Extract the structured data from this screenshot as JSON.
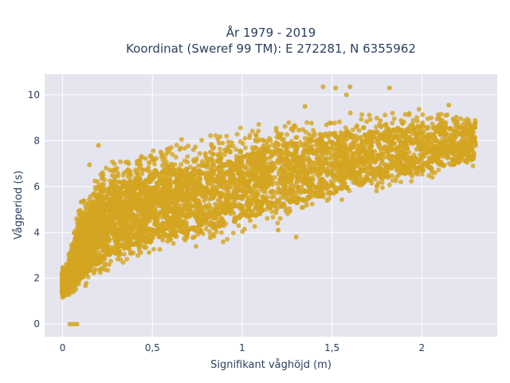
{
  "chart_data": {
    "type": "scatter",
    "title_line1": "År 1979 - 2019",
    "title_line2": "Koordinat (Sweref 99 TM): E 272281, N 6355962",
    "xlabel": "Signifikant våghöjd (m)",
    "ylabel": "Vågperiod (s)",
    "xlim": [
      -0.1,
      2.42
    ],
    "ylim": [
      -0.55,
      10.9
    ],
    "xticks": [
      0,
      0.5,
      1,
      1.5,
      2
    ],
    "xtick_labels": [
      "0",
      "0,5",
      "1",
      "1,5",
      "2"
    ],
    "yticks": [
      0,
      2,
      4,
      6,
      8,
      10
    ],
    "ytick_labels": [
      "0",
      "2",
      "4",
      "6",
      "8",
      "10"
    ],
    "grid": true,
    "plot_background": "#e5e5ef",
    "marker_color": "#d4a520",
    "point_cloud": {
      "x_range": [
        0.0,
        2.3
      ],
      "lower_envelope": [
        [
          0.02,
          1.1
        ],
        [
          0.1,
          1.4
        ],
        [
          0.2,
          1.9
        ],
        [
          0.3,
          2.3
        ],
        [
          0.5,
          2.9
        ],
        [
          0.8,
          3.3
        ],
        [
          1.0,
          3.8
        ],
        [
          1.3,
          4.6
        ],
        [
          1.6,
          5.4
        ],
        [
          2.0,
          6.2
        ],
        [
          2.3,
          6.8
        ]
      ],
      "upper_envelope": [
        [
          0.02,
          2.6
        ],
        [
          0.1,
          5.5
        ],
        [
          0.2,
          6.8
        ],
        [
          0.3,
          7.3
        ],
        [
          0.5,
          7.9
        ],
        [
          0.8,
          8.4
        ],
        [
          1.0,
          8.8
        ],
        [
          1.3,
          9.0
        ],
        [
          1.6,
          9.3
        ],
        [
          2.0,
          9.5
        ],
        [
          2.3,
          9.2
        ]
      ]
    },
    "outliers": [
      {
        "x": 0.04,
        "y": 0.0
      },
      {
        "x": 0.06,
        "y": 0.0
      },
      {
        "x": 0.08,
        "y": 0.0
      },
      {
        "x": 1.45,
        "y": 10.35
      },
      {
        "x": 1.52,
        "y": 10.3
      },
      {
        "x": 1.6,
        "y": 10.35
      },
      {
        "x": 1.82,
        "y": 10.3
      },
      {
        "x": 1.58,
        "y": 10.0
      },
      {
        "x": 1.35,
        "y": 9.5
      },
      {
        "x": 2.15,
        "y": 9.55
      },
      {
        "x": 0.2,
        "y": 7.8
      },
      {
        "x": 0.15,
        "y": 6.95
      },
      {
        "x": 1.3,
        "y": 3.8
      },
      {
        "x": 1.2,
        "y": 4.1
      },
      {
        "x": 2.3,
        "y": 7.8
      }
    ]
  }
}
